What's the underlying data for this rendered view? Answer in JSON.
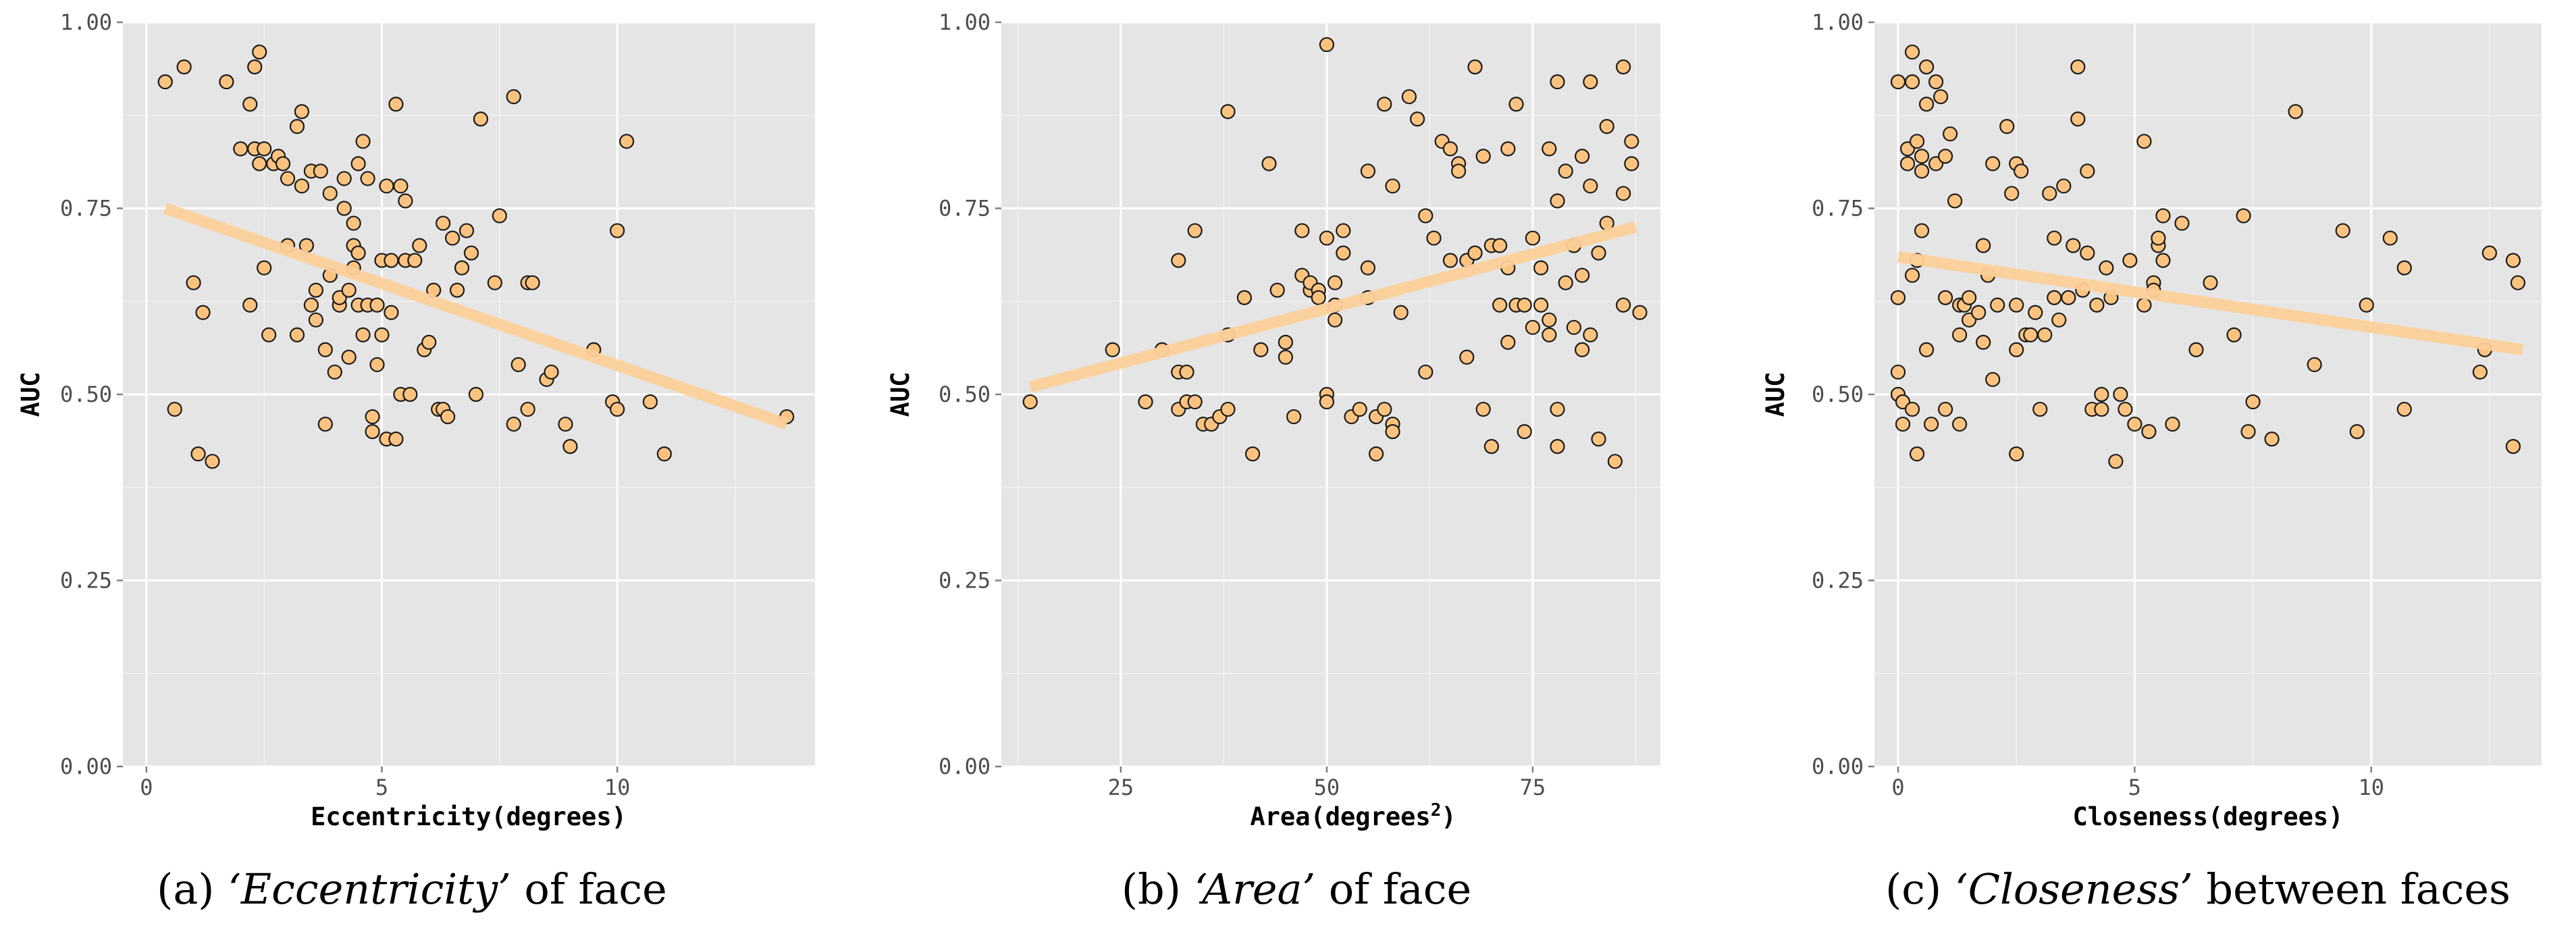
{
  "chart_data": [
    {
      "type": "scatter",
      "xlabel": "Eccentricity(degrees)",
      "ylabel": "AUC",
      "xlim": [
        -0.5,
        14.2
      ],
      "ylim": [
        0.0,
        1.0
      ],
      "xticks": [
        0,
        5,
        10
      ],
      "yticks": [
        0.0,
        0.25,
        0.5,
        0.75,
        1.0
      ],
      "ytick_labels": [
        "0.00",
        "0.25",
        "0.50",
        "0.75",
        "1.00"
      ],
      "grid": true,
      "caption": {
        "prefix": "(a) ",
        "emphasis": "‘Eccentricity’",
        "suffix": " of face"
      },
      "trend_line": {
        "x": [
          0.4,
          13.6
        ],
        "y": [
          0.75,
          0.46
        ]
      },
      "points": [
        [
          0.4,
          0.92
        ],
        [
          0.6,
          0.48
        ],
        [
          0.8,
          0.94
        ],
        [
          1.0,
          0.65
        ],
        [
          1.1,
          0.42
        ],
        [
          1.2,
          0.61
        ],
        [
          1.4,
          0.41
        ],
        [
          1.7,
          0.92
        ],
        [
          2.0,
          0.83
        ],
        [
          2.2,
          0.89
        ],
        [
          2.2,
          0.62
        ],
        [
          2.3,
          0.94
        ],
        [
          2.3,
          0.83
        ],
        [
          2.4,
          0.96
        ],
        [
          2.4,
          0.81
        ],
        [
          2.5,
          0.67
        ],
        [
          2.5,
          0.83
        ],
        [
          2.6,
          0.58
        ],
        [
          2.7,
          0.81
        ],
        [
          2.8,
          0.82
        ],
        [
          2.9,
          0.81
        ],
        [
          3.0,
          0.7
        ],
        [
          3.0,
          0.79
        ],
        [
          3.2,
          0.58
        ],
        [
          3.2,
          0.86
        ],
        [
          3.3,
          0.88
        ],
        [
          3.3,
          0.78
        ],
        [
          3.4,
          0.7
        ],
        [
          3.5,
          0.62
        ],
        [
          3.5,
          0.8
        ],
        [
          3.6,
          0.64
        ],
        [
          3.6,
          0.6
        ],
        [
          3.7,
          0.8
        ],
        [
          3.8,
          0.56
        ],
        [
          3.8,
          0.46
        ],
        [
          3.9,
          0.66
        ],
        [
          3.9,
          0.77
        ],
        [
          4.0,
          0.53
        ],
        [
          4.1,
          0.62
        ],
        [
          4.1,
          0.63
        ],
        [
          4.2,
          0.79
        ],
        [
          4.2,
          0.75
        ],
        [
          4.3,
          0.64
        ],
        [
          4.3,
          0.55
        ],
        [
          4.4,
          0.7
        ],
        [
          4.4,
          0.73
        ],
        [
          4.4,
          0.67
        ],
        [
          4.5,
          0.62
        ],
        [
          4.5,
          0.69
        ],
        [
          4.5,
          0.81
        ],
        [
          4.6,
          0.84
        ],
        [
          4.6,
          0.58
        ],
        [
          4.7,
          0.79
        ],
        [
          4.7,
          0.62
        ],
        [
          4.8,
          0.47
        ],
        [
          4.8,
          0.45
        ],
        [
          4.9,
          0.54
        ],
        [
          4.9,
          0.62
        ],
        [
          5.0,
          0.68
        ],
        [
          5.0,
          0.58
        ],
        [
          5.1,
          0.44
        ],
        [
          5.1,
          0.78
        ],
        [
          5.2,
          0.61
        ],
        [
          5.2,
          0.68
        ],
        [
          5.3,
          0.89
        ],
        [
          5.3,
          0.44
        ],
        [
          5.4,
          0.5
        ],
        [
          5.4,
          0.78
        ],
        [
          5.5,
          0.76
        ],
        [
          5.5,
          0.68
        ],
        [
          5.6,
          0.5
        ],
        [
          5.7,
          0.68
        ],
        [
          5.8,
          0.7
        ],
        [
          5.9,
          0.56
        ],
        [
          6.0,
          0.57
        ],
        [
          6.1,
          0.64
        ],
        [
          6.2,
          0.48
        ],
        [
          6.3,
          0.73
        ],
        [
          6.3,
          0.48
        ],
        [
          6.4,
          0.47
        ],
        [
          6.5,
          0.71
        ],
        [
          6.6,
          0.64
        ],
        [
          6.7,
          0.67
        ],
        [
          6.8,
          0.72
        ],
        [
          6.9,
          0.69
        ],
        [
          7.0,
          0.5
        ],
        [
          7.1,
          0.87
        ],
        [
          7.4,
          0.65
        ],
        [
          7.5,
          0.74
        ],
        [
          7.8,
          0.9
        ],
        [
          7.8,
          0.46
        ],
        [
          7.9,
          0.54
        ],
        [
          8.1,
          0.65
        ],
        [
          8.1,
          0.48
        ],
        [
          8.2,
          0.65
        ],
        [
          8.5,
          0.52
        ],
        [
          8.6,
          0.53
        ],
        [
          8.9,
          0.46
        ],
        [
          9.0,
          0.43
        ],
        [
          9.5,
          0.56
        ],
        [
          9.9,
          0.49
        ],
        [
          10.0,
          0.72
        ],
        [
          10.0,
          0.48
        ],
        [
          10.2,
          0.84
        ],
        [
          10.7,
          0.49
        ],
        [
          11.0,
          0.42
        ],
        [
          13.6,
          0.47
        ]
      ]
    },
    {
      "type": "scatter",
      "xlabel": "Area(degrees",
      "xlabel_superscript": "2",
      "xlabel_close": ")",
      "ylabel": "AUC",
      "xlim": [
        10.5,
        90.5
      ],
      "ylim": [
        0.0,
        1.0
      ],
      "xticks": [
        25,
        50,
        75
      ],
      "yticks": [
        0.0,
        0.25,
        0.5,
        0.75,
        1.0
      ],
      "ytick_labels": [
        "0.00",
        "0.25",
        "0.50",
        "0.75",
        "1.00"
      ],
      "grid": true,
      "caption": {
        "prefix": "(b) ",
        "emphasis": "‘Area’",
        "suffix": " of face"
      },
      "trend_line": {
        "x": [
          14,
          87.5
        ],
        "y": [
          0.51,
          0.725
        ]
      },
      "points": [
        [
          14,
          0.49
        ],
        [
          24,
          0.56
        ],
        [
          28,
          0.49
        ],
        [
          30,
          0.56
        ],
        [
          32,
          0.53
        ],
        [
          32,
          0.48
        ],
        [
          32,
          0.68
        ],
        [
          33,
          0.49
        ],
        [
          33,
          0.53
        ],
        [
          34,
          0.49
        ],
        [
          34,
          0.72
        ],
        [
          35,
          0.46
        ],
        [
          36,
          0.46
        ],
        [
          37,
          0.47
        ],
        [
          38,
          0.48
        ],
        [
          38,
          0.58
        ],
        [
          38,
          0.88
        ],
        [
          40,
          0.63
        ],
        [
          41,
          0.42
        ],
        [
          42,
          0.56
        ],
        [
          43,
          0.81
        ],
        [
          44,
          0.64
        ],
        [
          45,
          0.57
        ],
        [
          45,
          0.55
        ],
        [
          46,
          0.47
        ],
        [
          47,
          0.66
        ],
        [
          47,
          0.72
        ],
        [
          48,
          0.64
        ],
        [
          48,
          0.65
        ],
        [
          49,
          0.64
        ],
        [
          49,
          0.63
        ],
        [
          50,
          0.97
        ],
        [
          50,
          0.5
        ],
        [
          50,
          0.49
        ],
        [
          50,
          0.71
        ],
        [
          51,
          0.65
        ],
        [
          51,
          0.6
        ],
        [
          51,
          0.62
        ],
        [
          52,
          0.72
        ],
        [
          52,
          0.69
        ],
        [
          53,
          0.47
        ],
        [
          54,
          0.48
        ],
        [
          55,
          0.63
        ],
        [
          55,
          0.67
        ],
        [
          55,
          0.8
        ],
        [
          56,
          0.47
        ],
        [
          56,
          0.42
        ],
        [
          57,
          0.89
        ],
        [
          57,
          0.48
        ],
        [
          58,
          0.46
        ],
        [
          58,
          0.45
        ],
        [
          58,
          0.78
        ],
        [
          59,
          0.61
        ],
        [
          60,
          0.9
        ],
        [
          61,
          0.87
        ],
        [
          62,
          0.74
        ],
        [
          62,
          0.53
        ],
        [
          63,
          0.71
        ],
        [
          64,
          0.84
        ],
        [
          65,
          0.68
        ],
        [
          65,
          0.83
        ],
        [
          66,
          0.81
        ],
        [
          66,
          0.8
        ],
        [
          67,
          0.68
        ],
        [
          67,
          0.55
        ],
        [
          68,
          0.69
        ],
        [
          68,
          0.94
        ],
        [
          69,
          0.48
        ],
        [
          69,
          0.82
        ],
        [
          70,
          0.43
        ],
        [
          70,
          0.7
        ],
        [
          71,
          0.7
        ],
        [
          71,
          0.62
        ],
        [
          72,
          0.67
        ],
        [
          72,
          0.83
        ],
        [
          72,
          0.57
        ],
        [
          73,
          0.62
        ],
        [
          73,
          0.89
        ],
        [
          74,
          0.45
        ],
        [
          74,
          0.62
        ],
        [
          75,
          0.59
        ],
        [
          75,
          0.71
        ],
        [
          76,
          0.67
        ],
        [
          76,
          0.62
        ],
        [
          77,
          0.6
        ],
        [
          77,
          0.58
        ],
        [
          77,
          0.83
        ],
        [
          78,
          0.92
        ],
        [
          78,
          0.43
        ],
        [
          78,
          0.48
        ],
        [
          78,
          0.76
        ],
        [
          79,
          0.8
        ],
        [
          79,
          0.65
        ],
        [
          80,
          0.7
        ],
        [
          80,
          0.59
        ],
        [
          81,
          0.66
        ],
        [
          81,
          0.82
        ],
        [
          81,
          0.56
        ],
        [
          82,
          0.78
        ],
        [
          82,
          0.58
        ],
        [
          82,
          0.92
        ],
        [
          83,
          0.69
        ],
        [
          83,
          0.44
        ],
        [
          84,
          0.73
        ],
        [
          84,
          0.86
        ],
        [
          85,
          0.41
        ],
        [
          86,
          0.62
        ],
        [
          86,
          0.77
        ],
        [
          86,
          0.94
        ],
        [
          87,
          0.84
        ],
        [
          87,
          0.81
        ],
        [
          88,
          0.61
        ]
      ]
    },
    {
      "type": "scatter",
      "xlabel": "Closeness(degrees)",
      "ylabel": "AUC",
      "xlim": [
        -0.5,
        13.6
      ],
      "ylim": [
        0.0,
        1.0
      ],
      "xticks": [
        0,
        5,
        10
      ],
      "yticks": [
        0.0,
        0.25,
        0.5,
        0.75,
        1.0
      ],
      "ytick_labels": [
        "0.00",
        "0.25",
        "0.50",
        "0.75",
        "1.00"
      ],
      "grid": true,
      "caption": {
        "prefix": "(c) ",
        "emphasis": "‘Closeness’",
        "suffix": " between faces"
      },
      "trend_line": {
        "x": [
          0,
          13.2
        ],
        "y": [
          0.685,
          0.56
        ]
      },
      "points": [
        [
          0.0,
          0.92
        ],
        [
          0.0,
          0.63
        ],
        [
          0.0,
          0.53
        ],
        [
          0.0,
          0.5
        ],
        [
          0.1,
          0.49
        ],
        [
          0.1,
          0.46
        ],
        [
          0.2,
          0.83
        ],
        [
          0.2,
          0.81
        ],
        [
          0.3,
          0.96
        ],
        [
          0.3,
          0.92
        ],
        [
          0.3,
          0.66
        ],
        [
          0.3,
          0.48
        ],
        [
          0.4,
          0.84
        ],
        [
          0.4,
          0.68
        ],
        [
          0.4,
          0.42
        ],
        [
          0.5,
          0.8
        ],
        [
          0.5,
          0.72
        ],
        [
          0.5,
          0.82
        ],
        [
          0.6,
          0.94
        ],
        [
          0.6,
          0.89
        ],
        [
          0.6,
          0.56
        ],
        [
          0.7,
          0.46
        ],
        [
          0.8,
          0.81
        ],
        [
          0.8,
          0.92
        ],
        [
          0.9,
          0.9
        ],
        [
          1.0,
          0.48
        ],
        [
          1.0,
          0.63
        ],
        [
          1.0,
          0.82
        ],
        [
          1.1,
          0.85
        ],
        [
          1.2,
          0.76
        ],
        [
          1.3,
          0.58
        ],
        [
          1.3,
          0.62
        ],
        [
          1.3,
          0.46
        ],
        [
          1.4,
          0.62
        ],
        [
          1.5,
          0.63
        ],
        [
          1.5,
          0.6
        ],
        [
          1.7,
          0.61
        ],
        [
          1.8,
          0.7
        ],
        [
          1.8,
          0.57
        ],
        [
          1.9,
          0.66
        ],
        [
          2.0,
          0.52
        ],
        [
          2.0,
          0.81
        ],
        [
          2.1,
          0.62
        ],
        [
          2.3,
          0.86
        ],
        [
          2.4,
          0.77
        ],
        [
          2.5,
          0.81
        ],
        [
          2.5,
          0.62
        ],
        [
          2.5,
          0.56
        ],
        [
          2.5,
          0.42
        ],
        [
          2.6,
          0.8
        ],
        [
          2.7,
          0.58
        ],
        [
          2.8,
          0.58
        ],
        [
          2.9,
          0.61
        ],
        [
          3.0,
          0.48
        ],
        [
          3.1,
          0.58
        ],
        [
          3.2,
          0.77
        ],
        [
          3.3,
          0.63
        ],
        [
          3.3,
          0.71
        ],
        [
          3.4,
          0.6
        ],
        [
          3.5,
          0.78
        ],
        [
          3.6,
          0.63
        ],
        [
          3.7,
          0.7
        ],
        [
          3.8,
          0.94
        ],
        [
          3.8,
          0.87
        ],
        [
          3.9,
          0.64
        ],
        [
          4.0,
          0.8
        ],
        [
          4.0,
          0.69
        ],
        [
          4.1,
          0.48
        ],
        [
          4.2,
          0.62
        ],
        [
          4.3,
          0.5
        ],
        [
          4.3,
          0.48
        ],
        [
          4.4,
          0.67
        ],
        [
          4.5,
          0.63
        ],
        [
          4.6,
          0.41
        ],
        [
          4.7,
          0.5
        ],
        [
          4.8,
          0.48
        ],
        [
          4.9,
          0.68
        ],
        [
          5.0,
          0.46
        ],
        [
          5.2,
          0.62
        ],
        [
          5.2,
          0.84
        ],
        [
          5.3,
          0.45
        ],
        [
          5.4,
          0.65
        ],
        [
          5.4,
          0.64
        ],
        [
          5.5,
          0.7
        ],
        [
          5.5,
          0.71
        ],
        [
          5.6,
          0.68
        ],
        [
          5.6,
          0.74
        ],
        [
          5.8,
          0.46
        ],
        [
          6.0,
          0.73
        ],
        [
          6.3,
          0.56
        ],
        [
          6.6,
          0.65
        ],
        [
          7.1,
          0.58
        ],
        [
          7.3,
          0.74
        ],
        [
          7.4,
          0.45
        ],
        [
          7.5,
          0.49
        ],
        [
          7.9,
          0.44
        ],
        [
          8.4,
          0.88
        ],
        [
          8.8,
          0.54
        ],
        [
          9.4,
          0.72
        ],
        [
          9.7,
          0.45
        ],
        [
          9.9,
          0.62
        ],
        [
          10.4,
          0.71
        ],
        [
          10.7,
          0.67
        ],
        [
          10.7,
          0.48
        ],
        [
          12.3,
          0.53
        ],
        [
          12.4,
          0.56
        ],
        [
          12.5,
          0.69
        ],
        [
          13.0,
          0.68
        ],
        [
          13.0,
          0.43
        ],
        [
          13.1,
          0.65
        ]
      ]
    }
  ]
}
